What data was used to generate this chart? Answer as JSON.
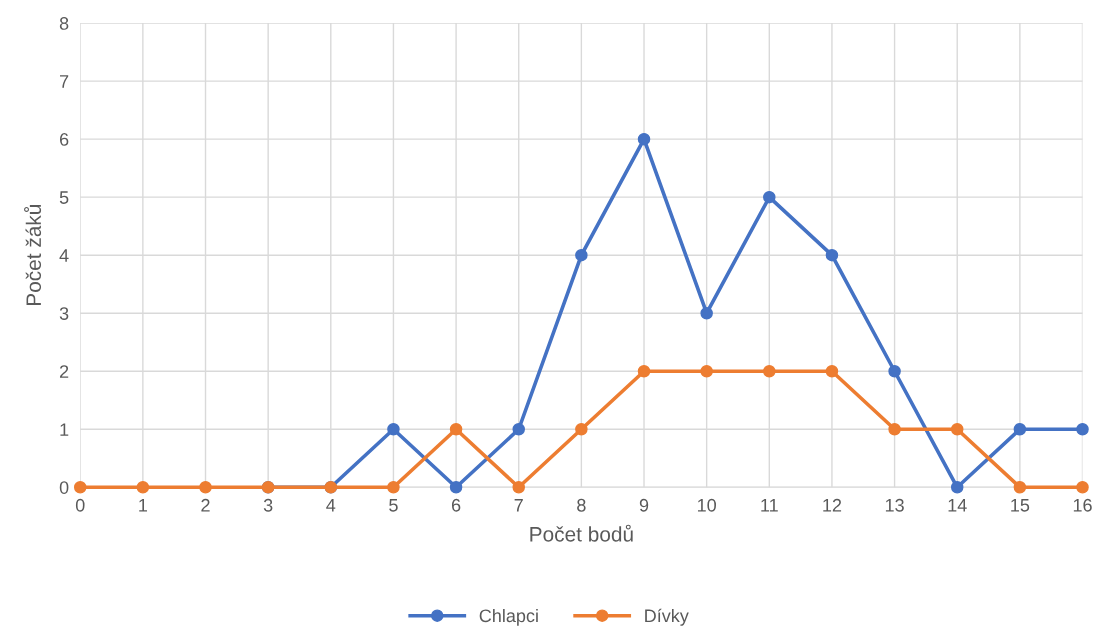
{
  "chart_data": {
    "type": "line",
    "xlabel": "Počet bodů",
    "ylabel": "Počet žáků",
    "x": [
      0,
      1,
      2,
      3,
      4,
      5,
      6,
      7,
      8,
      9,
      10,
      11,
      12,
      13,
      14,
      15,
      16
    ],
    "series": [
      {
        "name": "Chlapci",
        "color": "#4472c4",
        "values": [
          null,
          null,
          null,
          0,
          0,
          1,
          0,
          1,
          4,
          6,
          3,
          5,
          4,
          2,
          0,
          1,
          1
        ]
      },
      {
        "name": "Dívky",
        "color": "#ed7d31",
        "values": [
          0,
          0,
          0,
          0,
          0,
          0,
          1,
          0,
          1,
          2,
          2,
          2,
          2,
          1,
          1,
          0,
          0
        ]
      }
    ],
    "xlim": [
      0,
      16
    ],
    "xticks": [
      0,
      1,
      2,
      3,
      4,
      5,
      6,
      7,
      8,
      9,
      10,
      11,
      12,
      13,
      14,
      15,
      16
    ],
    "ylim": [
      0,
      8
    ],
    "yticks": [
      0,
      1,
      2,
      3,
      4,
      5,
      6,
      7,
      8
    ],
    "grid": true,
    "legend": "bottom",
    "marker": "circle",
    "line_style": "solid"
  }
}
